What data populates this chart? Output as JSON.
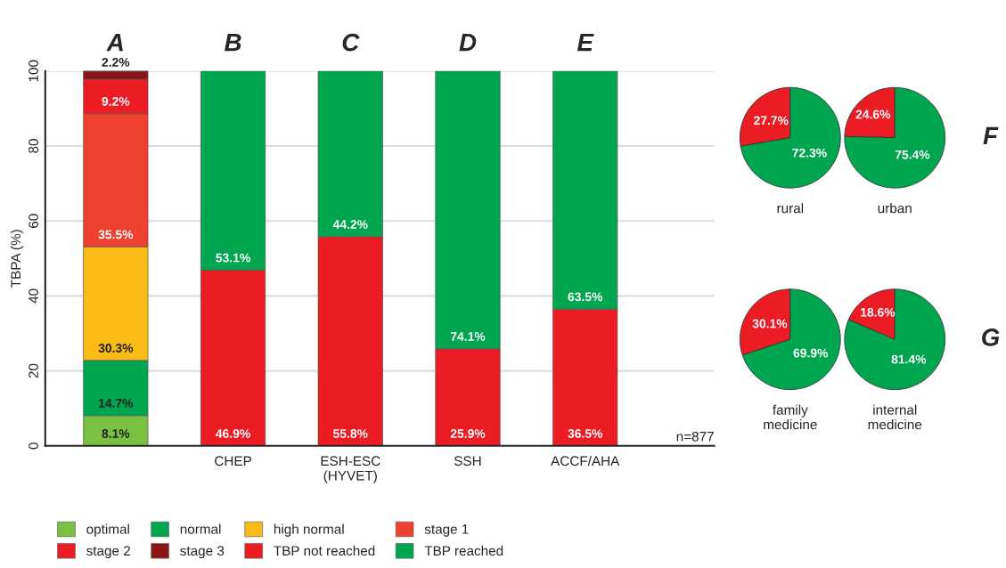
{
  "chart_data": [
    {
      "type": "bar",
      "stacked": true,
      "ylabel": "TBPA (%)",
      "categories": [
        null,
        "CHEP",
        "ESH-ESC\n(HYVET)",
        "SSH",
        "ACCF/AHA"
      ],
      "ylim": [
        0,
        100
      ],
      "yticks": [
        0,
        20,
        40,
        60,
        80,
        100
      ],
      "grid": "y",
      "legend": "bottom",
      "annotations": [
        "A",
        "B",
        "C",
        "D",
        "E",
        "n=877"
      ],
      "series": [
        {
          "name": "optimal",
          "color": "#7ac143",
          "values": [
            8.1,
            null,
            null,
            null,
            null
          ],
          "value_labels": [
            "8.1%",
            null,
            null,
            null,
            null
          ]
        },
        {
          "name": "normal",
          "color": "#00a54f",
          "values": [
            14.7,
            null,
            null,
            null,
            null
          ],
          "value_labels": [
            "14.7%",
            null,
            null,
            null,
            null
          ]
        },
        {
          "name": "high normal",
          "color": "#fbbb16",
          "values": [
            30.3,
            null,
            null,
            null,
            null
          ],
          "value_labels": [
            "30.3%",
            null,
            null,
            null,
            null
          ]
        },
        {
          "name": "stage 1",
          "color": "#ef4130",
          "values": [
            35.5,
            null,
            null,
            null,
            null
          ],
          "value_labels": [
            "35.5%",
            null,
            null,
            null,
            null
          ]
        },
        {
          "name": "stage 2",
          "color": "#ec1c24",
          "values": [
            9.2,
            null,
            null,
            null,
            null
          ],
          "value_labels": [
            "9.2%",
            null,
            null,
            null,
            null
          ]
        },
        {
          "name": "stage 3",
          "color": "#8b1518",
          "values": [
            2.2,
            null,
            null,
            null,
            null
          ],
          "value_labels": [
            "2.2%",
            null,
            null,
            null,
            null
          ]
        },
        {
          "name": "TBP not reached",
          "color": "#ec1c24",
          "values": [
            null,
            46.9,
            55.8,
            25.9,
            36.5
          ],
          "value_labels": [
            null,
            "46.9%",
            "55.8%",
            "25.9%",
            "36.5%"
          ]
        },
        {
          "name": "TBP reached",
          "color": "#00a54f",
          "values": [
            null,
            53.1,
            44.2,
            74.1,
            63.5
          ],
          "value_labels": [
            null,
            "53.1%",
            "44.2%",
            "74.1%",
            "63.5%"
          ]
        }
      ]
    },
    {
      "type": "pie",
      "title": "rural",
      "categories": [
        null,
        null
      ],
      "values": [
        27.7,
        72.3
      ],
      "colors": [
        "#ec1c24",
        "#00a54f"
      ],
      "value_labels": [
        "27.7%",
        "72.3%"
      ]
    },
    {
      "type": "pie",
      "title": "urban",
      "categories": [
        null,
        null
      ],
      "values": [
        24.6,
        75.4
      ],
      "colors": [
        "#ec1c24",
        "#00a54f"
      ],
      "value_labels": [
        "24.6%",
        "75.4%"
      ],
      "annotations": [
        "F"
      ]
    },
    {
      "type": "pie",
      "title": "family\nmedicine",
      "categories": [
        null,
        null
      ],
      "values": [
        30.1,
        69.9
      ],
      "colors": [
        "#ec1c24",
        "#00a54f"
      ],
      "value_labels": [
        "30.1%",
        "69.9%"
      ]
    },
    {
      "type": "pie",
      "title": "internal\nmedicine",
      "categories": [
        null,
        null
      ],
      "values": [
        18.6,
        81.4
      ],
      "colors": [
        "#ec1c24",
        "#00a54f"
      ],
      "value_labels": [
        "18.6%",
        "81.4%"
      ],
      "annotations": [
        "G"
      ]
    }
  ]
}
